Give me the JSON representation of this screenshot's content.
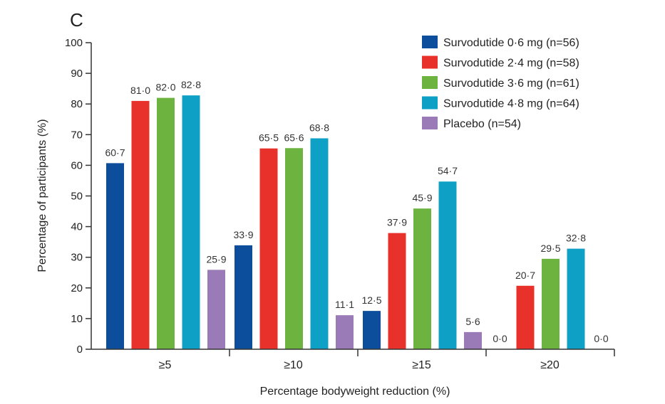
{
  "panel_label": "C",
  "chart_data": {
    "type": "bar",
    "xlabel": "Percentage bodyweight reduction (%)",
    "ylabel": "Percentage of participants (%)",
    "ylim": [
      0,
      100
    ],
    "yticks": [
      "0",
      "10",
      "20",
      "30",
      "40",
      "50",
      "60",
      "70",
      "80",
      "90",
      "100"
    ],
    "categories": [
      "≥5",
      "≥10",
      "≥15",
      "≥20"
    ],
    "legend_position": "top-right",
    "series": [
      {
        "name": "Survodutide 0·6 mg (n=56)",
        "color": "#0d4e9c",
        "values": [
          60.7,
          33.9,
          12.5,
          0.0
        ],
        "labels": [
          "60·7",
          "33·9",
          "12·5",
          "0·0"
        ]
      },
      {
        "name": "Survodutide 2·4 mg (n=58)",
        "color": "#e8312a",
        "values": [
          81.0,
          65.5,
          37.9,
          20.7
        ],
        "labels": [
          "81·0",
          "65·5",
          "37·9",
          "20·7"
        ]
      },
      {
        "name": "Survodutide 3·6 mg (n=61)",
        "color": "#6cb33f",
        "values": [
          82.0,
          65.6,
          45.9,
          29.5
        ],
        "labels": [
          "82·0",
          "65·6",
          "45·9",
          "29·5"
        ]
      },
      {
        "name": "Survodutide 4·8 mg (n=64)",
        "color": "#0fa0c6",
        "values": [
          82.8,
          68.8,
          54.7,
          32.8
        ],
        "labels": [
          "82·8",
          "68·8",
          "54·7",
          "32·8"
        ]
      },
      {
        "name": "Placebo (n=54)",
        "color": "#9b7ab8",
        "values": [
          25.9,
          11.1,
          5.6,
          0.0
        ],
        "labels": [
          "25·9",
          "11·1",
          "5·6",
          "0·0"
        ]
      }
    ]
  }
}
